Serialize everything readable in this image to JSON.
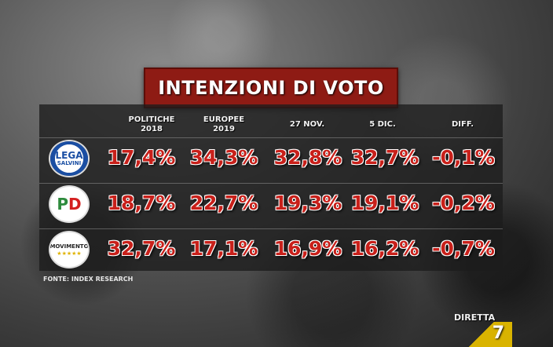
{
  "title": "INTENZIONI DI VOTO",
  "columns": [
    "POLITICHE\n2018",
    "EUROPEE\n2019",
    "27 NOV.",
    "5 DIC.",
    "DIFF."
  ],
  "rows": [
    {
      "party": "Lega",
      "logo_text": "LEGA",
      "logo_sub": "SALVINI",
      "values": [
        "17,4%",
        "34,3%",
        "32,8%",
        "32,7%",
        "-0,1%"
      ]
    },
    {
      "party": "PD",
      "logo_text": "PD",
      "logo_sub": "",
      "values": [
        "18,7%",
        "22,7%",
        "19,3%",
        "19,1%",
        "-0,2%"
      ]
    },
    {
      "party": "MoVimento 5 Stelle",
      "logo_text": "MOVIMENTO",
      "logo_sub": "★★★★★",
      "values": [
        "32,7%",
        "17,1%",
        "16,9%",
        "16,2%",
        "-0,7%"
      ]
    }
  ],
  "source": "FONTE: INDEX RESEARCH",
  "channel_bug": "DIRETTA",
  "channel_logo": "7",
  "colors": {
    "title_bg": "#8e1b14",
    "value_red": "#c8201a"
  }
}
